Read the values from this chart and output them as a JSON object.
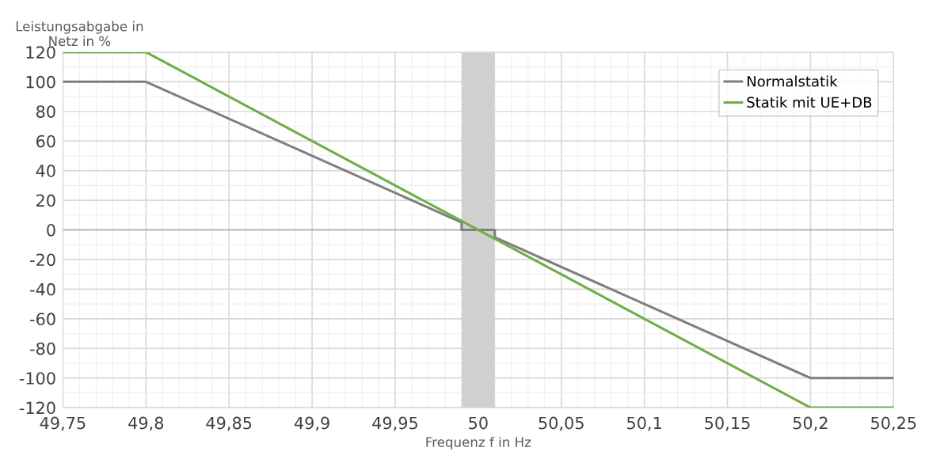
{
  "chart_data": {
    "type": "line",
    "xlabel": "Frequenz f in Hz",
    "ylabel": "Leistungsabgabe in\nNetz in %",
    "series": [
      {
        "name": "Normalstatik",
        "color": "#7f7f7f",
        "x": [
          49.75,
          49.8,
          49.99,
          49.99,
          50.01,
          50.01,
          50.2,
          50.25
        ],
        "values": [
          100,
          100,
          5,
          0,
          0,
          -5,
          -100,
          -100
        ]
      },
      {
        "name": "Statik mit UE+DB",
        "color": "#70ad47",
        "x": [
          49.75,
          49.8,
          50.2,
          50.25
        ],
        "values": [
          120,
          120,
          -120,
          -120
        ]
      }
    ],
    "bands": [
      {
        "axis": "x",
        "from": 49.99,
        "to": 50.01,
        "color": "#d0d0d0"
      }
    ],
    "ref_lines": [
      {
        "axis": "y",
        "value": 0,
        "color": "#a6a6a6"
      }
    ],
    "xlim": [
      49.75,
      50.25
    ],
    "xticks": [
      {
        "value": 49.75,
        "label": "49,75"
      },
      {
        "value": 49.8,
        "label": "49,8"
      },
      {
        "value": 49.85,
        "label": "49,85"
      },
      {
        "value": 49.9,
        "label": "49,9"
      },
      {
        "value": 49.95,
        "label": "49,95"
      },
      {
        "value": 50,
        "label": "50"
      },
      {
        "value": 50.05,
        "label": "50,05"
      },
      {
        "value": 50.1,
        "label": "50,1"
      },
      {
        "value": 50.15,
        "label": "50,15"
      },
      {
        "value": 50.2,
        "label": "50,2"
      },
      {
        "value": 50.25,
        "label": "50,25"
      }
    ],
    "ylim": [
      -120,
      120
    ],
    "yticks": [
      -120,
      -100,
      -80,
      -60,
      -40,
      -20,
      0,
      20,
      40,
      60,
      80,
      100,
      120
    ],
    "grid": true,
    "legend": "top right",
    "marker": "none",
    "line_style": "solid"
  }
}
